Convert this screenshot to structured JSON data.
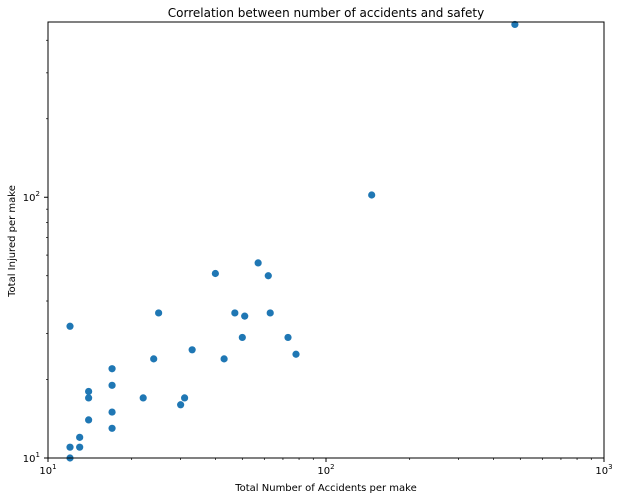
{
  "chart_data": {
    "type": "scatter",
    "title": "Correlation between number of accidents and safety",
    "xlabel": "Total Number of Accidents per make",
    "ylabel": "Total Injured per make",
    "xscale": "log",
    "yscale": "log",
    "xlim": [
      10,
      1000
    ],
    "ylim": [
      10,
      470
    ],
    "grid": false,
    "marker_color": "#1f77b4",
    "x_ticks": [
      {
        "base": "10",
        "exp": "1"
      },
      {
        "base": "10",
        "exp": "2"
      },
      {
        "base": "10",
        "exp": "3"
      }
    ],
    "y_ticks": [
      {
        "base": "10",
        "exp": "1"
      },
      {
        "base": "10",
        "exp": "2"
      }
    ],
    "points": [
      {
        "x": 12,
        "y": 10
      },
      {
        "x": 12,
        "y": 11
      },
      {
        "x": 13,
        "y": 11
      },
      {
        "x": 13,
        "y": 12
      },
      {
        "x": 12,
        "y": 32
      },
      {
        "x": 14,
        "y": 14
      },
      {
        "x": 14,
        "y": 17
      },
      {
        "x": 14,
        "y": 18
      },
      {
        "x": 17,
        "y": 13
      },
      {
        "x": 17,
        "y": 15
      },
      {
        "x": 17,
        "y": 19
      },
      {
        "x": 17,
        "y": 22
      },
      {
        "x": 22,
        "y": 17
      },
      {
        "x": 24,
        "y": 24
      },
      {
        "x": 25,
        "y": 36
      },
      {
        "x": 30,
        "y": 16
      },
      {
        "x": 31,
        "y": 17
      },
      {
        "x": 33,
        "y": 26
      },
      {
        "x": 40,
        "y": 51
      },
      {
        "x": 43,
        "y": 24
      },
      {
        "x": 47,
        "y": 36
      },
      {
        "x": 50,
        "y": 29
      },
      {
        "x": 51,
        "y": 35
      },
      {
        "x": 57,
        "y": 56
      },
      {
        "x": 62,
        "y": 50
      },
      {
        "x": 63,
        "y": 36
      },
      {
        "x": 73,
        "y": 29
      },
      {
        "x": 78,
        "y": 25
      },
      {
        "x": 146,
        "y": 102
      },
      {
        "x": 478,
        "y": 460
      }
    ]
  }
}
